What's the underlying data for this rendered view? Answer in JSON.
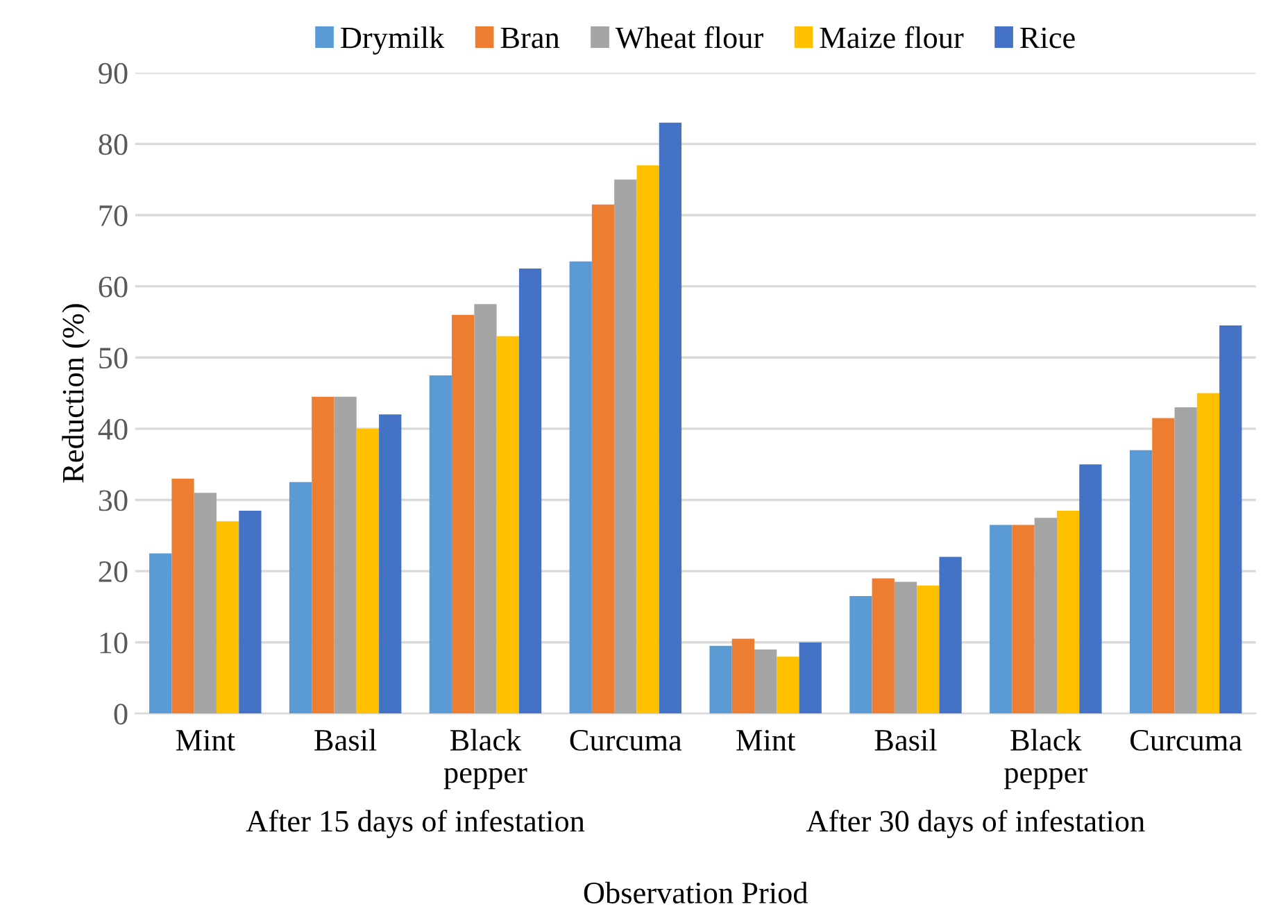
{
  "chart_data": {
    "type": "bar",
    "xlabel": "Observation Priod",
    "ylabel": "Reduction (%)",
    "categories": [
      "Mint",
      "Basil",
      "Black\npepper",
      "Curcuma",
      "Mint",
      "Basil",
      "Black\npepper",
      "Curcuma"
    ],
    "annotations": [
      "After 15 days of infestation",
      "After 30 days of infestation"
    ],
    "series": [
      {
        "name": "Drymilk",
        "color": "#5b9bd5",
        "values": [
          22.5,
          32.5,
          47.5,
          63.5,
          9.5,
          16.5,
          26.5,
          37
        ]
      },
      {
        "name": "Bran",
        "color": "#ed7d31",
        "values": [
          33,
          44.5,
          56,
          71.5,
          10.5,
          19,
          26.5,
          41.5
        ]
      },
      {
        "name": "Wheat flour",
        "color": "#a5a5a5",
        "values": [
          31,
          44.5,
          57.5,
          75,
          9,
          18.5,
          27.5,
          43
        ]
      },
      {
        "name": "Maize flour",
        "color": "#ffc000",
        "values": [
          27,
          40,
          53,
          77,
          8,
          18,
          28.5,
          45
        ]
      },
      {
        "name": "Rice",
        "color": "#4472c4",
        "values": [
          28.5,
          42,
          62.5,
          83,
          10,
          22,
          35,
          54.5
        ]
      }
    ],
    "ylim": [
      0,
      90
    ],
    "yticks": [
      0,
      10,
      20,
      30,
      40,
      50,
      60,
      70,
      80,
      90
    ],
    "grid": "y",
    "legend": "top"
  }
}
